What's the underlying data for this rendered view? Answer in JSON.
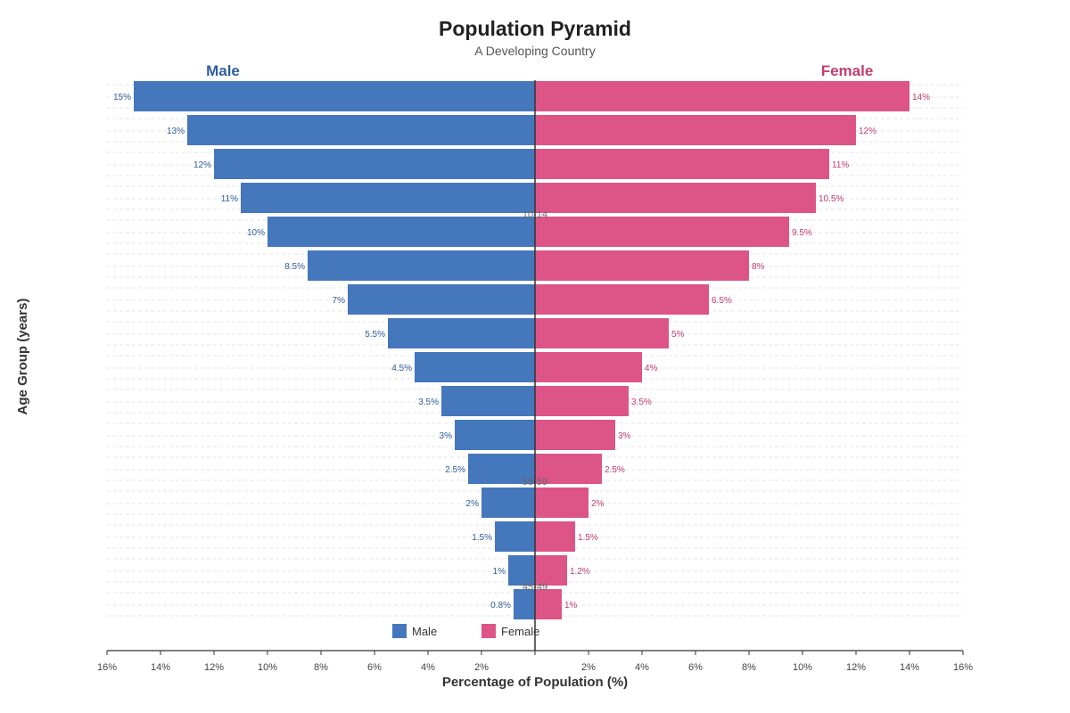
{
  "colors": {
    "male": "#4577bc",
    "female": "#dd5486",
    "male_text": "#2f5d9e",
    "female_text": "#c33c72"
  },
  "chart_data": {
    "type": "bar",
    "orientation": "horizontal",
    "subtype": "population-pyramid",
    "title": "Population Pyramid",
    "subtitle": "A Developing Country",
    "xlabel": "Percentage of Population (%)",
    "ylabel": "Age Group (years)",
    "side_labels": {
      "left": "Male",
      "right": "Female"
    },
    "xlim": [
      -16,
      16
    ],
    "x_ticks": [
      "16%",
      "14%",
      "12%",
      "10%",
      "8%",
      "6%",
      "4%",
      "2%",
      "",
      "2%",
      "4%",
      "6%",
      "8%",
      "10%",
      "12%",
      "14%",
      "16%"
    ],
    "age_labels_partial": [
      "10-14",
      "55-59",
      "45-49"
    ],
    "series": [
      {
        "name": "Male",
        "values": [
          15,
          13,
          12,
          11,
          10,
          8.5,
          7,
          5.5,
          4.5,
          3.5,
          3,
          2.5,
          2,
          1.5,
          1,
          0.8
        ],
        "labels": [
          "15%",
          "13%",
          "12%",
          "11%",
          "10%",
          "8.5%",
          "7%",
          "5.5%",
          "4.5%",
          "3.5%",
          "3%",
          "2.5%",
          "2%",
          "1.5%",
          "1%",
          "0.8%"
        ]
      },
      {
        "name": "Female",
        "values": [
          14,
          12,
          11,
          10.5,
          9.5,
          8,
          6.5,
          5,
          4,
          3.5,
          3,
          2.5,
          2,
          1.5,
          1.2,
          1
        ],
        "labels": [
          "14%",
          "12%",
          "11%",
          "10.5%",
          "9.5%",
          "8%",
          "6.5%",
          "5%",
          "4%",
          "3.5%",
          "3%",
          "2.5%",
          "2%",
          "1.5%",
          "1.2%",
          "1%"
        ]
      }
    ],
    "legend": {
      "placement": "bottom-center",
      "entries": [
        "Male",
        "Female"
      ]
    },
    "grid": true
  }
}
